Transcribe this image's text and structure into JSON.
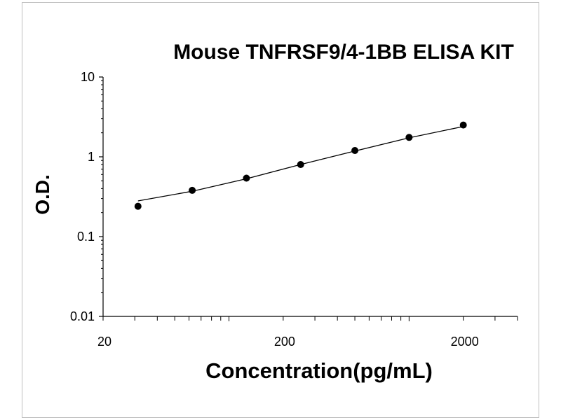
{
  "chart_data": {
    "type": "scatter",
    "title": "Mouse TNFRSF9/4-1BB ELISA KIT",
    "xlabel": "Concentration(pg/mL)",
    "ylabel": "O.D.",
    "x_scale": "log",
    "y_scale": "log",
    "xlim": [
      20,
      4000
    ],
    "ylim": [
      0.01,
      10
    ],
    "x_tick_labels": [
      "20",
      "200",
      "2000"
    ],
    "y_tick_labels": [
      "10",
      "1",
      "0.1",
      "0.01"
    ],
    "grid": false,
    "legend": "none",
    "series": [
      {
        "x": [
          31.25,
          62.5,
          125,
          250,
          500,
          1000,
          2000
        ],
        "y": [
          0.24,
          0.38,
          0.54,
          0.8,
          1.2,
          1.75,
          2.5
        ]
      }
    ],
    "fit_curve": {
      "x": [
        31.25,
        62.5,
        125,
        250,
        500,
        1000,
        2000
      ],
      "y": [
        0.28,
        0.37,
        0.53,
        0.8,
        1.18,
        1.73,
        2.4
      ]
    },
    "colors": {
      "points": "#000000",
      "curve": "#000000",
      "axes": "#000000"
    }
  }
}
